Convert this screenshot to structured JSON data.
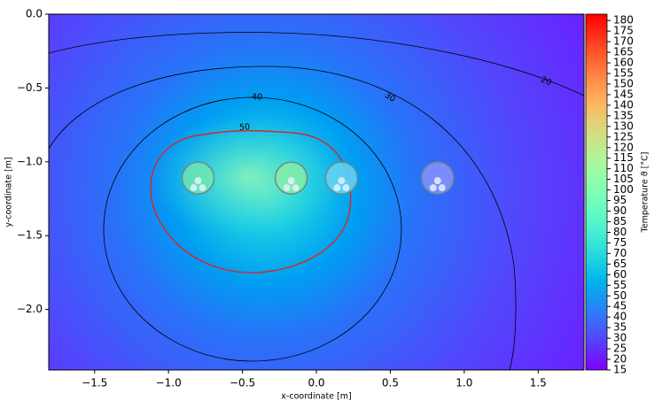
{
  "chart_data": {
    "type": "heatmap",
    "xlabel": "x-coordinate [m]",
    "ylabel": "y-coordinate [m]",
    "colorbar_label": "Temperature ϑ [°C]",
    "colormap": "rainbow",
    "xlim": [
      -1.81,
      1.81
    ],
    "ylim": [
      -2.41,
      0
    ],
    "xticks": [
      {
        "value": -1.5,
        "label": "−1.5"
      },
      {
        "value": -1,
        "label": "−1.0"
      },
      {
        "value": -0.5,
        "label": "−0.5"
      },
      {
        "value": 0,
        "label": "0.0"
      },
      {
        "value": 0.5,
        "label": "0.5"
      },
      {
        "value": 1,
        "label": "1.0"
      },
      {
        "value": 1.5,
        "label": "1.5"
      }
    ],
    "yticks": [
      {
        "value": 0,
        "label": "0.0"
      },
      {
        "value": -0.5,
        "label": "−0.5"
      },
      {
        "value": -1,
        "label": "−1.0"
      },
      {
        "value": -1.5,
        "label": "−1.5"
      },
      {
        "value": -2,
        "label": "−2.0"
      }
    ],
    "clim": [
      15,
      183
    ],
    "cticks": [
      15,
      20,
      25,
      30,
      35,
      40,
      45,
      50,
      55,
      60,
      65,
      70,
      75,
      80,
      85,
      90,
      95,
      100,
      105,
      110,
      115,
      120,
      125,
      130,
      135,
      140,
      145,
      150,
      155,
      160,
      165,
      170,
      175,
      180
    ],
    "contours": [
      {
        "level": 20,
        "color": "#000000"
      },
      {
        "level": 30,
        "color": "#000000"
      },
      {
        "level": 40,
        "color": "#000000"
      },
      {
        "level": 50,
        "color": "#d62728"
      }
    ],
    "cables": {
      "x": [
        -0.8,
        -0.17,
        0.17,
        0.82
      ],
      "y": [
        -1.11,
        -1.11,
        -1.11,
        -1.11
      ]
    }
  }
}
